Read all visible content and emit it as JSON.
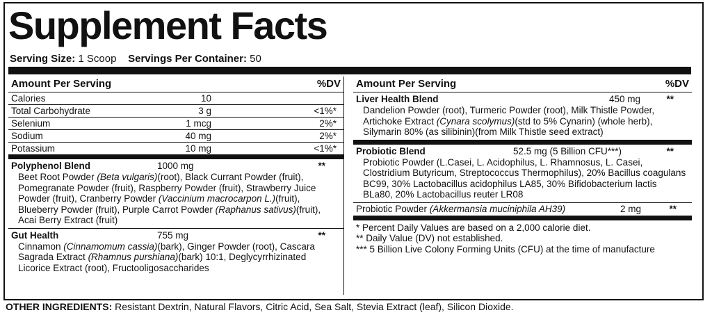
{
  "header": {
    "title": "Supplement Facts",
    "serving_size_label": "Serving Size:",
    "serving_size": "1 Scoop",
    "servings_label": "Servings Per Container:",
    "servings": "50"
  },
  "left": {
    "column_headers": [
      "Amount Per Serving",
      "%DV"
    ],
    "nutrients": [
      [
        "Calories",
        "10"
      ],
      [
        "Total Carbohydrate",
        "3 g",
        "<1%*"
      ],
      [
        "Selenium",
        "1 mcg",
        "2%*"
      ],
      [
        "Sodium",
        "40 mg",
        "2%*"
      ],
      [
        "Potassium",
        "10 mg",
        "<1%*"
      ]
    ],
    "blends": [
      {
        "name": "Polyphenol Blend",
        "amount": "1000 mg",
        "dv": "**",
        "description": [
          {
            "text": "Beet Root Powder "
          },
          {
            "text": "(Beta vulgaris)",
            "italic": true
          },
          {
            "text": "(root), Black Currant Powder (fruit), Pomegranate Powder (fruit), Raspberry Powder (fruit), Strawberry Juice Powder (fruit), Cranberry Powder "
          },
          {
            "text": "(Vaccinium macrocarpon L.)",
            "italic": true
          },
          {
            "text": "(fruit), Blueberry Powder (fruit), Purple Carrot Powder "
          },
          {
            "text": "(Raphanus sativus)",
            "italic": true
          },
          {
            "text": "(fruit), Acai Berry Extract (fruit)"
          }
        ]
      },
      {
        "name": "Gut Health",
        "amount": "755 mg",
        "dv": "**",
        "description": [
          {
            "text": "Cinnamon "
          },
          {
            "text": "(Cinnamomum cassia)",
            "italic": true
          },
          {
            "text": "(bark), Ginger Powder (root), Cascara Sagrada Extract "
          },
          {
            "text": "(Rhamnus purshiana)",
            "italic": true
          },
          {
            "text": "(bark) 10:1, Deglycyrrhizinated Licorice Extract (root), Fructooligosaccharides"
          }
        ]
      }
    ]
  },
  "right": {
    "column_headers": [
      "Amount Per Serving",
      "%DV"
    ],
    "blends": [
      {
        "name": "Liver Health Blend",
        "amount": "450 mg",
        "dv": "**",
        "description": [
          {
            "text": "Dandelion Powder (root), Turmeric Powder (root), Milk Thistle Powder, Artichoke Extract "
          },
          {
            "text": "(Cynara scolymus)",
            "italic": true
          },
          {
            "text": "(std to 5% Cynarin) (whole herb), Silymarin 80% (as silibinin)(from Milk Thistle seed extract)"
          }
        ]
      },
      {
        "name": "Probiotic Blend",
        "amount": "52.5 mg (5 Billion CFU***)",
        "dv": "**",
        "description": [
          {
            "text": "Probiotic Powder (L.Casei, L. Acidophilus, L. Rhamnosus, L. Casei, Clostridium Butyricum, Streptococcus Thermophilus), 20% Bacillus coagulans BC99, 30% Lactobacillus acidophilus LA85, 30% Bifidobacterium lactis BLa80, 20% Lactobacillus reuter LR08"
          }
        ]
      }
    ],
    "single": {
      "name": [
        {
          "text": "Probiotic Powder "
        },
        {
          "text": "(Akkermansia muciniphila AH39)",
          "italic": true
        }
      ],
      "amount": "2 mg",
      "dv": "**"
    },
    "footnotes": [
      "* Percent Daily Values are based on a 2,000 calorie diet.",
      "** Daily Value (DV) not established.",
      "*** 5 Billion Live Colony Forming Units (CFU) at the time of manufacture"
    ]
  },
  "other_ingredients": {
    "label": "OTHER INGREDIENTS:",
    "text": "Resistant Dextrin, Natural Flavors, Citric Acid, Sea Salt, Stevia Extract (leaf), Silicon Dioxide."
  }
}
